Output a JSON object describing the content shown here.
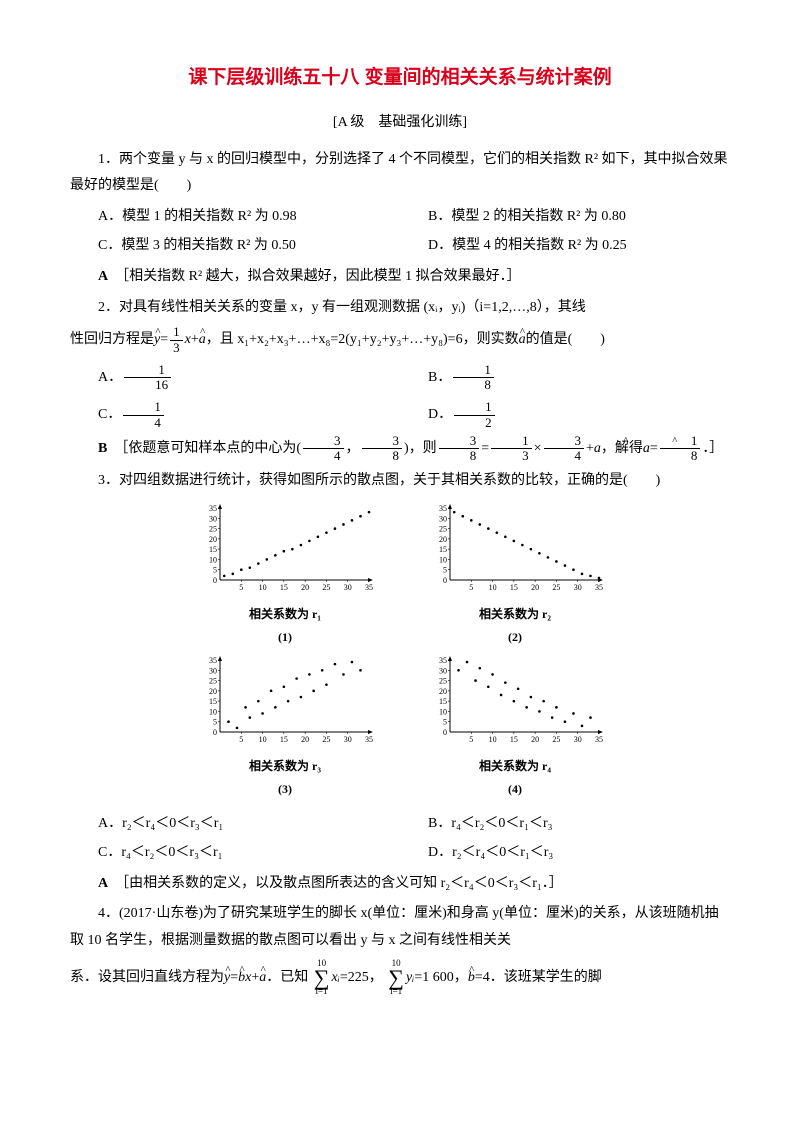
{
  "title": "课下层级训练五十八 变量间的相关关系与统计案例",
  "subtitle": "[A 级　基础强化训练]",
  "q1": {
    "stem": "1．两个变量 y 与 x 的回归模型中，分别选择了 4 个不同模型，它们的相关指数 R² 如下，其中拟合效果最好的模型是(　　)",
    "optA": "A．模型 1 的相关指数 R² 为 0.98",
    "optB": "B．模型 2 的相关指数 R² 为 0.80",
    "optC": "C．模型 3 的相关指数 R² 为 0.50",
    "optD": "D．模型 4 的相关指数 R² 为 0.25",
    "ans_label": "A",
    "ans_text": "［相关指数 R² 越大，拟合效果越好，因此模型 1 拟合效果最好．］"
  },
  "q2": {
    "stem_a": "2．对具有线性相关关系的变量 x，y 有一组观测数据 (xᵢ，yᵢ)（i=1,2,…,8），其线",
    "stem_b": "性回归方程是",
    "stem_c": "，且 x₁+x₂+x₃+…+x₈=2(y₁+y₂+y₃+…+y₈)=6，则实数",
    "stem_d": "的值是(　　)",
    "optA": "A．",
    "optB": "B．",
    "optC": "C．",
    "optD": "D．",
    "fA_n": "1",
    "fA_d": "16",
    "fB_n": "1",
    "fB_d": "8",
    "fC_n": "1",
    "fC_d": "4",
    "fD_n": "1",
    "fD_d": "2",
    "ans_label": "B",
    "ans_a": "［依题意可知样本点的中心为",
    "ans_b": "，则",
    "ans_c": "，解得",
    "ans_d": "．］",
    "c1_n": "3",
    "c1_d": "4",
    "c2_n": "3",
    "c2_d": "8",
    "e1_n": "3",
    "e1_d": "8",
    "e2_n": "1",
    "e2_d": "3",
    "e3_n": "3",
    "e3_d": "4",
    "r_n": "1",
    "r_d": "8",
    "reg_n": "1",
    "reg_d": "3"
  },
  "q3": {
    "stem": "3．对四组数据进行统计，获得如图所示的散点图，关于其相关系数的比较，正确的是(　　)",
    "optA": "A．r₂＜r₄＜0＜r₃＜r₁",
    "optB": "B．r₄＜r₂＜0＜r₁＜r₃",
    "optC": "C．r₄＜r₂＜0＜r₃＜r₁",
    "optD": "D．r₂＜r₄＜0＜r₁＜r₃",
    "ans_label": "A",
    "ans_text": "［由相关系数的定义，以及散点图所表达的含义可知 r₂＜r₄＜0＜r₃＜r₁．］",
    "plots": {
      "axis_color": "#000",
      "dot_color": "#000",
      "dot_r": 1.3,
      "xticks": [
        5,
        10,
        15,
        20,
        25,
        30,
        35
      ],
      "yticks": [
        5,
        10,
        15,
        20,
        25,
        30,
        35
      ],
      "label1": "相关系数为 r₁",
      "num1": "(1)",
      "label2": "相关系数为 r₂",
      "num2": "(2)",
      "label3": "相关系数为 r₃",
      "num3": "(3)",
      "label4": "相关系数为 r₄",
      "num4": "(4)",
      "p1": [
        [
          1,
          2
        ],
        [
          3,
          3
        ],
        [
          5,
          5
        ],
        [
          7,
          6
        ],
        [
          9,
          8
        ],
        [
          11,
          10
        ],
        [
          13,
          12
        ],
        [
          15,
          14
        ],
        [
          17,
          15
        ],
        [
          19,
          17
        ],
        [
          21,
          19
        ],
        [
          23,
          21
        ],
        [
          25,
          23
        ],
        [
          27,
          25
        ],
        [
          29,
          27
        ],
        [
          31,
          29
        ],
        [
          33,
          31
        ],
        [
          35,
          33
        ]
      ],
      "p2": [
        [
          1,
          33
        ],
        [
          3,
          31
        ],
        [
          5,
          29
        ],
        [
          7,
          27
        ],
        [
          9,
          25
        ],
        [
          11,
          23
        ],
        [
          13,
          21
        ],
        [
          15,
          19
        ],
        [
          17,
          17
        ],
        [
          19,
          15
        ],
        [
          21,
          13
        ],
        [
          23,
          11
        ],
        [
          25,
          9
        ],
        [
          27,
          7
        ],
        [
          29,
          5
        ],
        [
          31,
          3
        ],
        [
          33,
          2
        ],
        [
          35,
          1
        ]
      ],
      "p3": [
        [
          2,
          5
        ],
        [
          4,
          2
        ],
        [
          6,
          12
        ],
        [
          7,
          7
        ],
        [
          9,
          15
        ],
        [
          10,
          9
        ],
        [
          12,
          20
        ],
        [
          13,
          12
        ],
        [
          15,
          22
        ],
        [
          16,
          15
        ],
        [
          18,
          26
        ],
        [
          19,
          17
        ],
        [
          21,
          28
        ],
        [
          22,
          20
        ],
        [
          24,
          30
        ],
        [
          25,
          23
        ],
        [
          27,
          33
        ],
        [
          29,
          28
        ],
        [
          31,
          34
        ],
        [
          33,
          30
        ]
      ],
      "p4": [
        [
          2,
          30
        ],
        [
          4,
          34
        ],
        [
          6,
          25
        ],
        [
          7,
          31
        ],
        [
          9,
          22
        ],
        [
          10,
          28
        ],
        [
          12,
          18
        ],
        [
          13,
          24
        ],
        [
          15,
          15
        ],
        [
          16,
          21
        ],
        [
          18,
          12
        ],
        [
          19,
          17
        ],
        [
          21,
          10
        ],
        [
          22,
          15
        ],
        [
          24,
          7
        ],
        [
          25,
          12
        ],
        [
          27,
          5
        ],
        [
          29,
          9
        ],
        [
          31,
          3
        ],
        [
          33,
          7
        ]
      ]
    }
  },
  "q4": {
    "stem_a": "4．(2017·山东卷)为了研究某班学生的脚长 x(单位：厘米)和身高 y(单位：厘米)的关系，从该班随机抽取 10 名学生，根据测量数据的散点图可以看出 y 与 x 之间有线性相关关",
    "stem_b": "系．设其回归直线方程为",
    "stem_c": "．已知",
    "stem_d": "=225，",
    "stem_e": "=1 600，",
    "stem_f": "=4．该班某学生的脚",
    "sum_top": "10",
    "sum_bot": "i=1",
    "sum1_body": "xᵢ",
    "sum2_body": "yᵢ"
  }
}
